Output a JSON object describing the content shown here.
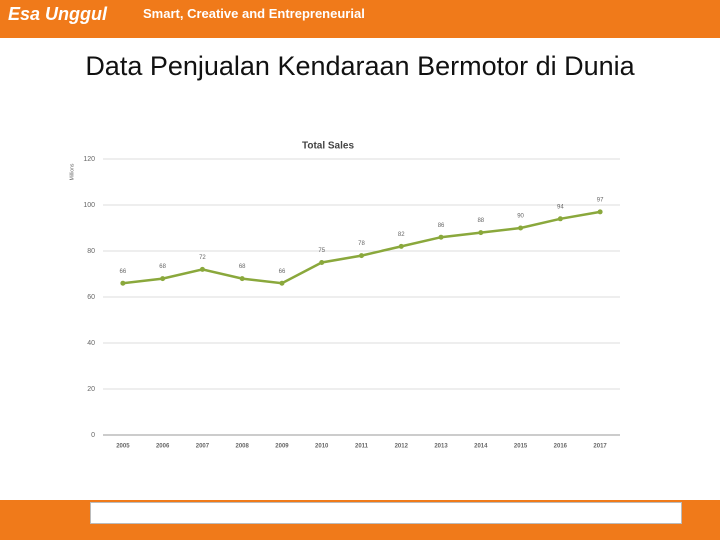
{
  "header": {
    "logo": "Esa Unggul",
    "tagline": "Smart, Creative and Entrepreneurial"
  },
  "slide_title": "Data Penjualan Kendaraan Bermotor di Dunia",
  "chart_data": {
    "type": "line",
    "title": "Total Sales",
    "y_label": "Millions",
    "categories": [
      "2005",
      "2006",
      "2007",
      "2008",
      "2009",
      "2010",
      "2011",
      "2012",
      "2013",
      "2014",
      "2015",
      "2016",
      "2017"
    ],
    "values": [
      66,
      68,
      72,
      68,
      66,
      75,
      78,
      82,
      86,
      88,
      90,
      94,
      97
    ],
    "color": "#8aa83c",
    "ylim": [
      0,
      120
    ],
    "yticks": [
      0,
      20,
      40,
      60,
      80,
      100,
      120
    ],
    "grid": true
  }
}
